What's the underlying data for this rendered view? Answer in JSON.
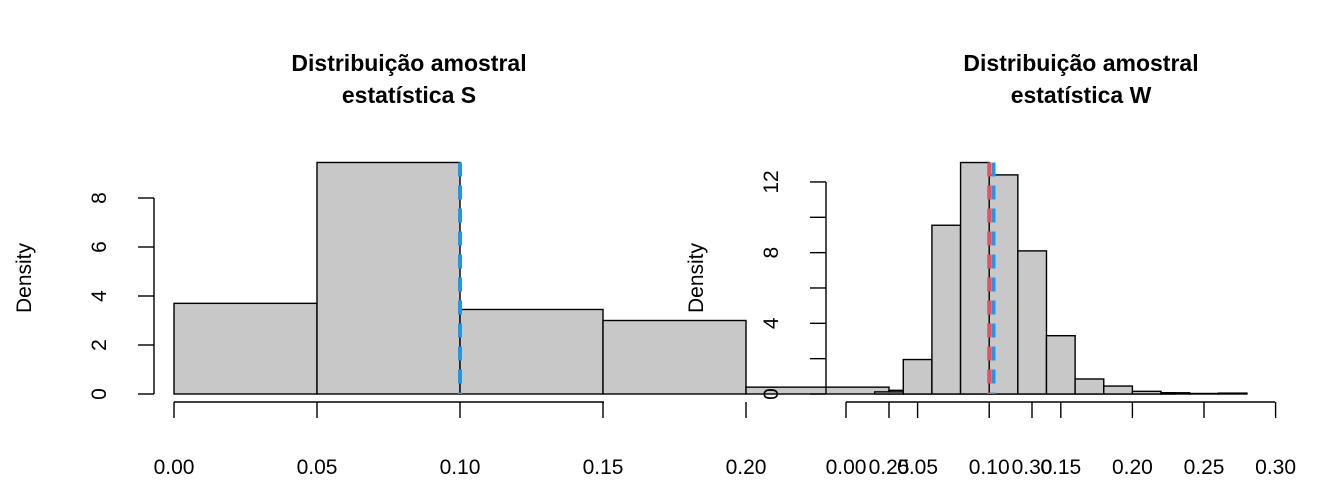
{
  "chart_data": [
    {
      "type": "histogram",
      "title": [
        "Distribuição amostral",
        "estatística S"
      ],
      "xlabel": "",
      "ylabel": "Density",
      "x_ticks": [
        "0.00",
        "0.05",
        "0.10",
        "0.15",
        "0.20",
        "0.25",
        "0.30"
      ],
      "y_ticks": [
        "0",
        "2",
        "4",
        "6",
        "8"
      ],
      "xlim": [
        0.0,
        0.34
      ],
      "ylim": [
        0,
        9.5
      ],
      "bins": [
        {
          "x0": 0.0,
          "x1": 0.05,
          "density": 3.7
        },
        {
          "x0": 0.05,
          "x1": 0.1,
          "density": 9.45
        },
        {
          "x0": 0.1,
          "x1": 0.15,
          "density": 3.45
        },
        {
          "x0": 0.15,
          "x1": 0.2,
          "density": 3.0
        },
        {
          "x0": 0.2,
          "x1": 0.25,
          "density": 0.28
        },
        {
          "x0": 0.25,
          "x1": 0.3,
          "density": 0.15
        },
        {
          "x0": 0.3,
          "x1": 0.35,
          "density": 0.05
        }
      ],
      "vlines": [
        {
          "x": 0.1,
          "color": "#2297e6",
          "style": "dashed"
        }
      ],
      "bar_color": "#c8c8c8"
    },
    {
      "type": "histogram",
      "title": [
        "Distribuição amostral",
        "estatística W"
      ],
      "xlabel": "",
      "ylabel": "Density",
      "x_ticks": [
        "0.00",
        "0.05",
        "0.10",
        "0.15",
        "0.20",
        "0.25",
        "0.30"
      ],
      "y_ticks": [
        "0",
        "4",
        "8",
        "12"
      ],
      "y_minor_ticks": [
        2,
        6,
        10
      ],
      "xlim": [
        0.0,
        0.3
      ],
      "ylim": [
        0,
        12
      ],
      "bins": [
        {
          "x0": 0.02,
          "x1": 0.04,
          "density": 0.12
        },
        {
          "x0": 0.04,
          "x1": 0.06,
          "density": 1.95
        },
        {
          "x0": 0.06,
          "x1": 0.08,
          "density": 9.55
        },
        {
          "x0": 0.08,
          "x1": 0.1,
          "density": 13.1
        },
        {
          "x0": 0.1,
          "x1": 0.12,
          "density": 12.4
        },
        {
          "x0": 0.12,
          "x1": 0.14,
          "density": 8.1
        },
        {
          "x0": 0.14,
          "x1": 0.16,
          "density": 3.3
        },
        {
          "x0": 0.16,
          "x1": 0.18,
          "density": 0.85
        },
        {
          "x0": 0.18,
          "x1": 0.2,
          "density": 0.45
        },
        {
          "x0": 0.2,
          "x1": 0.22,
          "density": 0.15
        },
        {
          "x0": 0.22,
          "x1": 0.24,
          "density": 0.07
        },
        {
          "x0": 0.24,
          "x1": 0.26,
          "density": 0.03
        },
        {
          "x0": 0.26,
          "x1": 0.28,
          "density": 0.05
        }
      ],
      "vlines": [
        {
          "x": 0.1,
          "color": "#df536b",
          "style": "dashed"
        },
        {
          "x": 0.103,
          "color": "#2297e6",
          "style": "dashed"
        }
      ],
      "bar_color": "#c8c8c8"
    }
  ]
}
